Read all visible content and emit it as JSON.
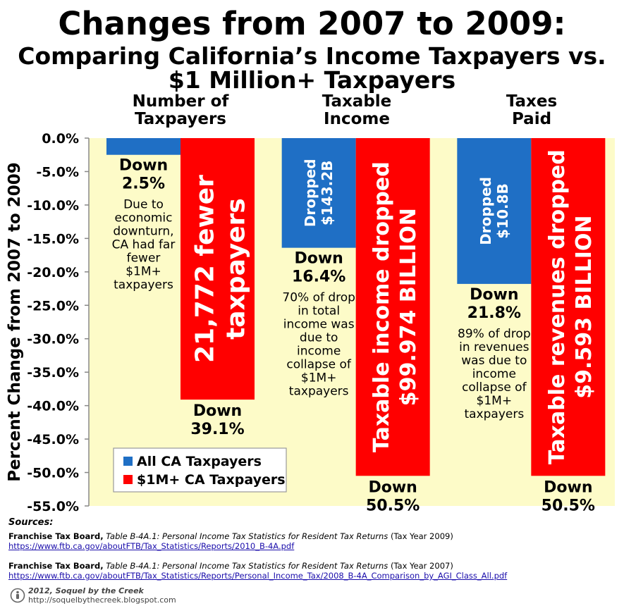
{
  "title": {
    "line1": "Changes from 2007 to 2009:",
    "line2": "Comparing California’s Income Taxpayers vs.",
    "line3": "$1 Million+ Taxpayers"
  },
  "chart_data": {
    "type": "bar",
    "ylabel": "Percent Change from 2007 to 2009",
    "ylim": [
      -55,
      0
    ],
    "yticks": [
      "0.0%",
      "-5.0%",
      "-10.0%",
      "-15.0%",
      "-20.0%",
      "-25.0%",
      "-30.0%",
      "-35.0%",
      "-40.0%",
      "-45.0%",
      "-50.0%",
      "-55.0%"
    ],
    "grid": false,
    "categories": [
      "Number of Taxpayers",
      "Taxable Income",
      "Taxes Paid"
    ],
    "category_heads": [
      [
        "Number of",
        "Taxpayers"
      ],
      [
        "Taxable",
        "Income"
      ],
      [
        "Taxes",
        "Paid"
      ]
    ],
    "series": [
      {
        "name": "All CA Taxpayers",
        "color": "#1f6fc5",
        "values": [
          -2.5,
          -16.4,
          -21.8
        ]
      },
      {
        "name": "$1M+ CA Taxpayers",
        "color": "#ff0000",
        "values": [
          -39.1,
          -50.5,
          -50.5
        ]
      }
    ],
    "legend_position": "bottom-left",
    "plot_background": "#fdfbc8",
    "annotations": {
      "blue_value_labels": [
        [
          "Down",
          "2.5%"
        ],
        [
          "Down",
          "16.4%"
        ],
        [
          "Down",
          "21.8%"
        ]
      ],
      "red_value_labels": [
        [
          "Down",
          "39.1%"
        ],
        [
          "Down",
          "50.5%"
        ],
        [
          "Down",
          "50.5%"
        ]
      ],
      "blue_inside_labels": [
        [],
        [
          "Dropped",
          "$143.2B"
        ],
        [
          "Dropped",
          "$10.8B"
        ]
      ],
      "red_inside_labels": [
        [
          "21,772 fewer",
          "taxpayers"
        ],
        [
          "Taxable income dropped",
          "$99.974 BILLION"
        ],
        [
          "Taxable revenues dropped",
          "$9.593 BILLION"
        ]
      ],
      "notes": [
        [
          "Due to",
          "economic",
          "downturn,",
          "CA had far",
          "fewer",
          "$1M+",
          "taxpayers"
        ],
        [
          "70% of drop",
          "in total",
          "income was",
          "due to",
          "income",
          "collapse of",
          "$1M+",
          "taxpayers"
        ],
        [
          "89% of drop",
          "in revenues",
          "was due to",
          "income",
          "collapse of",
          "$1M+",
          "taxpayers"
        ]
      ]
    }
  },
  "sources": {
    "label": "Sources:",
    "items": [
      {
        "org": "Franchise Tax Board,",
        "title": "Table B-4A.1: Personal Income Tax Statistics for Resident Tax Returns",
        "year": "(Tax Year 2009)",
        "url": "https://www.ftb.ca.gov/aboutFTB/Tax_Statistics/Reports/2010_B-4A.pdf"
      },
      {
        "org": "Franchise Tax Board,",
        "title": "Table B-4A.1: Personal Income Tax Statistics for Resident Tax Returns",
        "year": "(Tax Year 2007)",
        "url": "https://www.ftb.ca.gov/aboutFTB/Tax_Statistics/Reports/Personal_Income_Tax/2008_B-4A_Comparison_by_AGI_Class_All.pdf"
      }
    ]
  },
  "copyright": {
    "line1": "2012, Soquel by the Creek",
    "line2": "http://soquelbythecreek.blogspot.com"
  }
}
